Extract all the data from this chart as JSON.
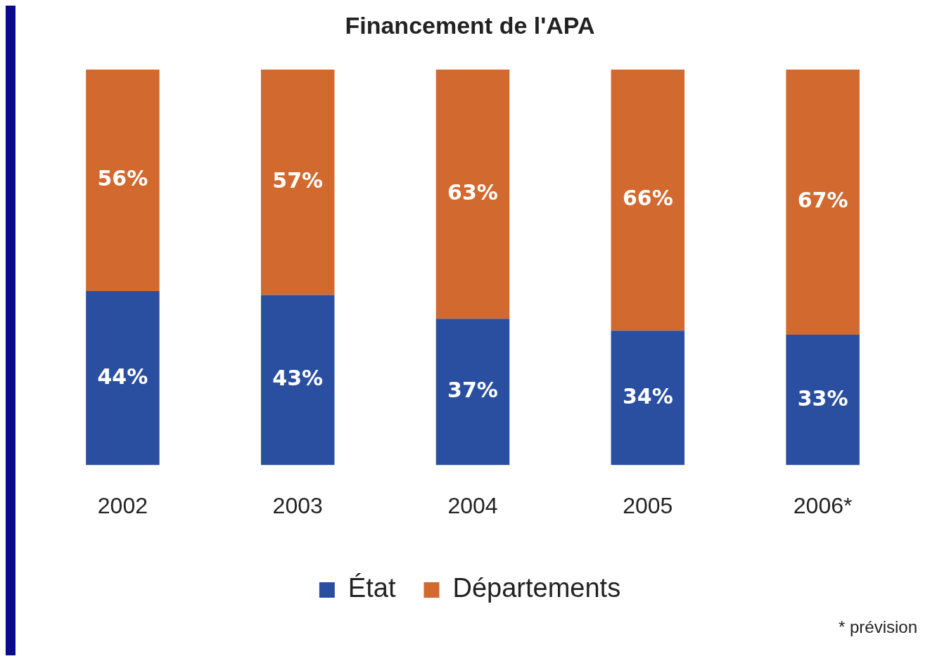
{
  "chart_data": {
    "type": "bar",
    "title": "Financement de l'APA",
    "categories": [
      "2002",
      "2003",
      "2004",
      "2005",
      "2006*"
    ],
    "stacked": true,
    "ylim": [
      0,
      100
    ],
    "tick_labels": "x",
    "grid": false,
    "legend": "bottom",
    "series": [
      {
        "name": "État",
        "color": "#2b4fa0",
        "values": [
          44,
          43,
          37,
          34,
          33
        ],
        "value_labels": [
          "44%",
          "43%",
          "37%",
          "34%",
          "33%"
        ]
      },
      {
        "name": "Départements",
        "color": "#d2692f",
        "values": [
          56,
          57,
          63,
          66,
          67
        ],
        "value_labels": [
          "56%",
          "57%",
          "63%",
          "66%",
          "67%"
        ]
      }
    ],
    "annotations": [
      "* prévision"
    ]
  }
}
